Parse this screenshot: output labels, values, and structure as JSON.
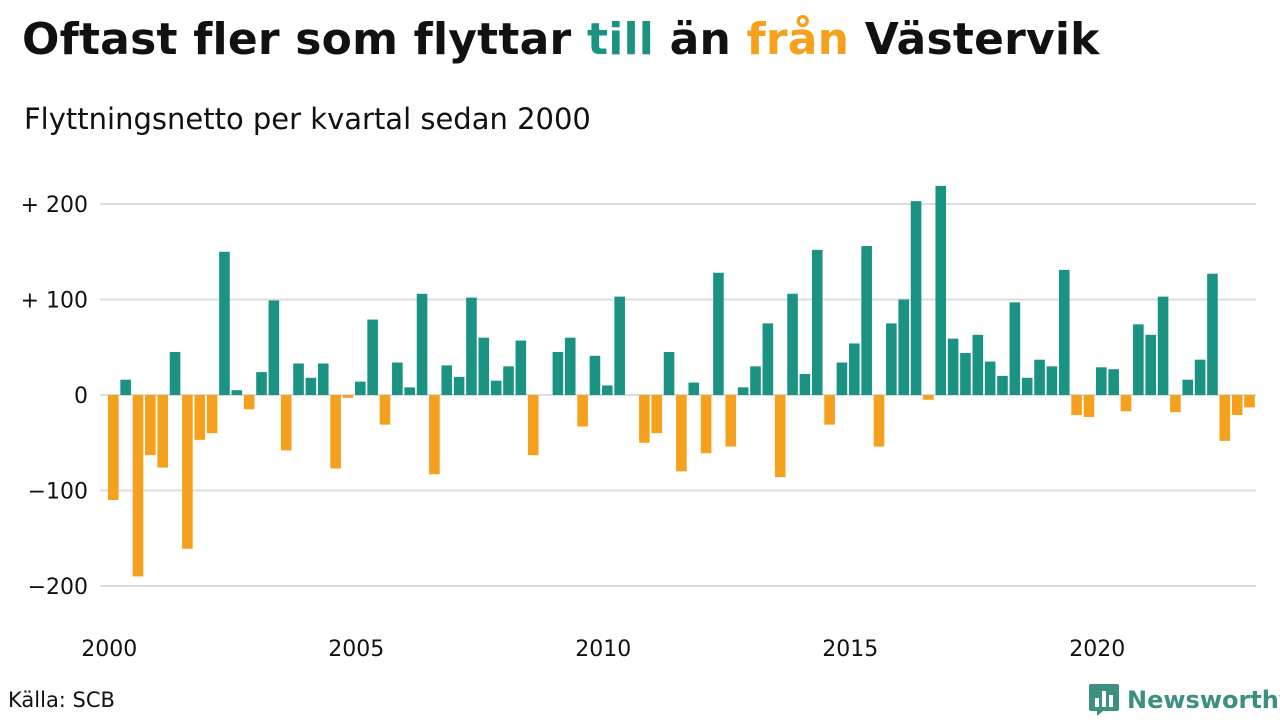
{
  "title": {
    "part1": "Oftast fler som flyttar ",
    "part2": "till",
    "part3": " än ",
    "part4": "från",
    "part5": " Västervik"
  },
  "subtitle": "Flyttningsnetto per kvartal sedan 2000",
  "source": "Källa: SCB",
  "brand": {
    "name": "Newsworthy",
    "icon": "bar-chart-logo-icon"
  },
  "colors": {
    "positive": "#1a9382",
    "negative": "#f5a11e",
    "grid": "#dddddd",
    "brand": "#3d8f80"
  },
  "chart_data": {
    "type": "bar",
    "title": "Oftast fler som flyttar till än från Västervik",
    "subtitle": "Flyttningsnetto per kvartal sedan 2000",
    "xlabel": "",
    "ylabel": "",
    "ylim": [
      -220,
      230
    ],
    "yticks": [
      200,
      100,
      0,
      -100,
      -200
    ],
    "ytick_labels": [
      "+ 200",
      "+ 100",
      "0",
      "−100",
      "−200"
    ],
    "xticks": [
      "2000",
      "2005",
      "2010",
      "2015",
      "2020"
    ],
    "grid": true,
    "first_period": "2000 Q1",
    "values": [
      -110,
      16,
      -190,
      -63,
      -76,
      45,
      -161,
      -47,
      -40,
      150,
      5,
      -15,
      24,
      99,
      -58,
      33,
      18,
      33,
      -77,
      -3,
      14,
      79,
      -31,
      34,
      8,
      106,
      -83,
      31,
      19,
      102,
      60,
      15,
      30,
      57,
      -63,
      0,
      45,
      60,
      -33,
      41,
      10,
      103,
      0,
      -50,
      -40,
      45,
      -80,
      13,
      -61,
      128,
      -54,
      8,
      30,
      75,
      -86,
      106,
      22,
      152,
      -31,
      34,
      54,
      156,
      -54,
      75,
      100,
      203,
      -5,
      219,
      59,
      44,
      63,
      35,
      20,
      97,
      18,
      37,
      30,
      131,
      -21,
      -23,
      29,
      27,
      -17,
      74,
      63,
      103,
      -18,
      16,
      37,
      127,
      -48,
      -21,
      -13
    ]
  }
}
